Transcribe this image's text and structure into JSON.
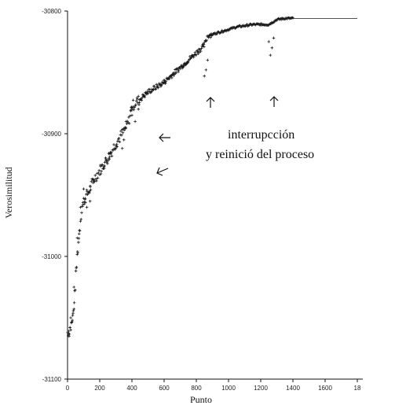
{
  "chart_data": {
    "type": "scatter",
    "xlabel": "Punto",
    "ylabel": "Verosimilitud",
    "xlim": [
      0,
      1800
    ],
    "ylim": [
      -31100,
      -30800
    ],
    "x_ticks": [
      "0",
      "200",
      "400",
      "600",
      "800",
      "1000",
      "1200",
      "1400",
      "1600",
      "18"
    ],
    "y_ticks": [
      "-30800",
      "-30900",
      "-31000",
      "-31100"
    ],
    "grid": false,
    "annotations": [
      "interrupcción",
      "y reinició del proceso"
    ],
    "series": [
      {
        "marker": "+",
        "trend": [
          [
            0,
            -31062
          ],
          [
            10,
            -31060
          ],
          [
            20,
            -31058
          ],
          [
            30,
            -31052
          ],
          [
            40,
            -31040
          ],
          [
            50,
            -31020
          ],
          [
            60,
            -31000
          ],
          [
            70,
            -30985
          ],
          [
            80,
            -30970
          ],
          [
            90,
            -30960
          ],
          [
            100,
            -30955
          ],
          [
            120,
            -30950
          ],
          [
            140,
            -30945
          ],
          [
            160,
            -30938
          ],
          [
            200,
            -30930
          ],
          [
            250,
            -30920
          ],
          [
            300,
            -30908
          ],
          [
            350,
            -30898
          ],
          [
            380,
            -30890
          ],
          [
            400,
            -30878
          ],
          [
            420,
            -30875
          ],
          [
            450,
            -30872
          ],
          [
            500,
            -30866
          ],
          [
            550,
            -30862
          ],
          [
            600,
            -30858
          ],
          [
            650,
            -30852
          ],
          [
            700,
            -30846
          ],
          [
            750,
            -30840
          ],
          [
            800,
            -30834
          ],
          [
            850,
            -30828
          ],
          [
            870,
            -30820
          ],
          [
            900,
            -30819
          ],
          [
            950,
            -30817
          ],
          [
            1000,
            -30815
          ],
          [
            1050,
            -30813
          ],
          [
            1100,
            -30812
          ],
          [
            1150,
            -30811
          ],
          [
            1200,
            -30811
          ],
          [
            1250,
            -30811
          ],
          [
            1300,
            -30807
          ],
          [
            1350,
            -30806
          ],
          [
            1400,
            -30806
          ],
          [
            1500,
            -30806
          ],
          [
            1600,
            -30806
          ],
          [
            1700,
            -30806
          ],
          [
            1800,
            -30806
          ]
        ],
        "outliers": [
          [
            10,
            -31065
          ],
          [
            15,
            -31058
          ],
          [
            20,
            -31050
          ],
          [
            40,
            -31025
          ],
          [
            60,
            -30985
          ],
          [
            80,
            -30960
          ],
          [
            100,
            -30945
          ],
          [
            120,
            -30960
          ],
          [
            140,
            -30955
          ],
          [
            160,
            -30940
          ],
          [
            340,
            -30912
          ],
          [
            350,
            -30905
          ],
          [
            360,
            -30895
          ],
          [
            400,
            -30885
          ],
          [
            420,
            -30890
          ],
          [
            440,
            -30880
          ],
          [
            850,
            -30853
          ],
          [
            860,
            -30848
          ],
          [
            870,
            -30840
          ],
          [
            1250,
            -30825
          ],
          [
            1260,
            -30836
          ],
          [
            1270,
            -30830
          ],
          [
            1280,
            -30822
          ]
        ]
      }
    ]
  }
}
